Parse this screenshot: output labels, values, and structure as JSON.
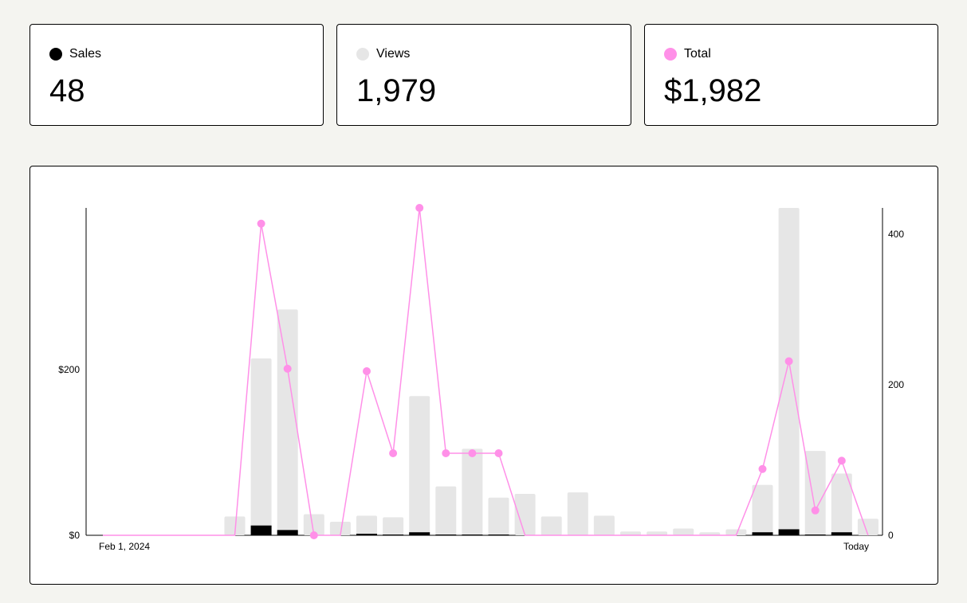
{
  "stats": {
    "sales": {
      "label": "Sales",
      "value": "48",
      "color": "#000000"
    },
    "views": {
      "label": "Views",
      "value": "1,979",
      "color": "#e6e6e6"
    },
    "total": {
      "label": "Total",
      "value": "$1,982",
      "color": "#ff90e8"
    }
  },
  "chart_data": {
    "type": "bar",
    "x_start_label": "Feb 1, 2024",
    "x_end_label": "Today",
    "left_axis": {
      "ticks": [
        "$0",
        "$200"
      ],
      "values": [
        0,
        200
      ],
      "range": [
        0,
        395
      ]
    },
    "right_axis": {
      "ticks": [
        "0",
        "200",
        "400"
      ],
      "values": [
        0,
        200,
        400
      ],
      "range": [
        0,
        435
      ]
    },
    "series": [
      {
        "name": "Views",
        "kind": "bar",
        "axis": "right",
        "color": "#e6e6e6",
        "values": [
          0,
          0,
          0,
          0,
          0,
          25,
          235,
          300,
          28,
          18,
          26,
          24,
          185,
          65,
          115,
          50,
          55,
          25,
          57,
          26,
          5,
          5,
          9,
          4,
          8,
          67,
          435,
          112,
          82,
          22
        ]
      },
      {
        "name": "Sales",
        "kind": "bar",
        "axis": "right",
        "color": "#000000",
        "values": [
          0,
          0,
          0,
          0,
          0,
          0,
          13,
          7,
          0,
          0,
          2,
          1,
          4,
          1,
          1,
          1,
          0,
          0,
          0,
          0,
          0,
          0,
          0,
          0,
          0,
          4,
          8,
          1,
          4,
          0
        ]
      },
      {
        "name": "Total",
        "kind": "line",
        "axis": "left",
        "color": "#ff90e8",
        "values": [
          0,
          0,
          0,
          0,
          0,
          0,
          376,
          201,
          0,
          0,
          198,
          99,
          395,
          99,
          99,
          99,
          0,
          0,
          0,
          0,
          0,
          0,
          0,
          0,
          0,
          80,
          210,
          30,
          90,
          0
        ],
        "markers": [
          false,
          false,
          false,
          false,
          false,
          false,
          true,
          true,
          true,
          false,
          true,
          true,
          true,
          true,
          true,
          true,
          false,
          false,
          false,
          false,
          false,
          false,
          false,
          false,
          false,
          true,
          true,
          true,
          true,
          false
        ]
      }
    ]
  }
}
